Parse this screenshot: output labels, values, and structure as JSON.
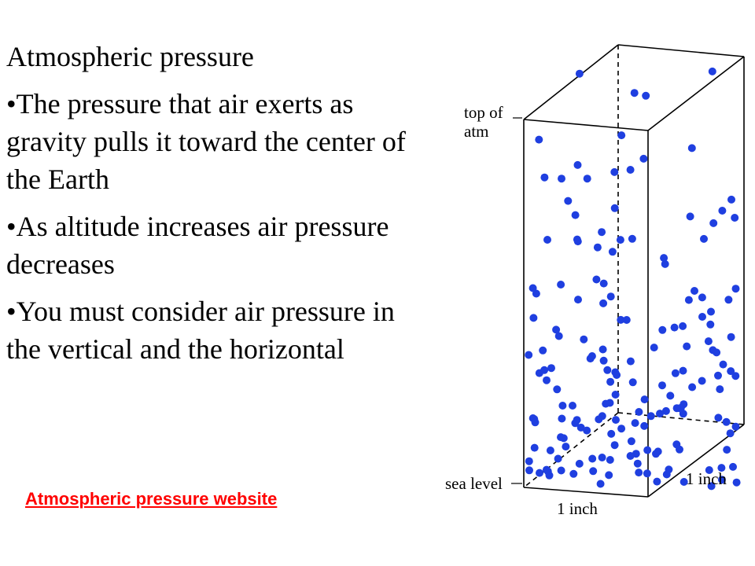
{
  "slide": {
    "title": "Atmospheric pressure",
    "bullets": [
      "•The pressure that air exerts as gravity pulls it toward the center of the Earth",
      "•As altitude increases air pressure decreases",
      "•You must consider air pressure in the vertical and the horizontal"
    ],
    "link_text": "Atmospheric pressure website",
    "link_color": "#ff0000"
  },
  "diagram": {
    "label_top_line1": "top of",
    "label_top_line2": "atm",
    "label_sea_level": "sea level",
    "label_depth": "1 inch",
    "label_width": "1 inch",
    "dot_color": "#1f3fe0",
    "density_note_hidden": false
  }
}
